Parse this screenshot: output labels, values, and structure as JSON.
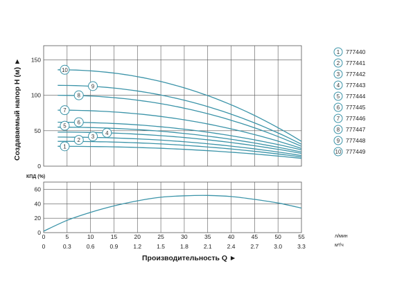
{
  "chart_data": [
    {
      "type": "line",
      "ylabel": "Создаваемый напор H (м)",
      "ylim": [
        0,
        170
      ],
      "xlim": [
        0,
        55
      ],
      "x_ticks": [],
      "y_ticks": [
        0,
        50,
        100,
        150
      ],
      "grid": true,
      "legend_position": "right",
      "color": "#3a93a8",
      "series": [
        {
          "id": "1",
          "name": "777440",
          "x": [
            3,
            55
          ],
          "y": [
            28,
            11
          ]
        },
        {
          "id": "2",
          "name": "777441",
          "x": [
            3,
            55
          ],
          "y": [
            35,
            13
          ]
        },
        {
          "id": "3",
          "name": "777442",
          "x": [
            3,
            55
          ],
          "y": [
            41,
            15
          ]
        },
        {
          "id": "4",
          "name": "777443",
          "x": [
            3,
            55
          ],
          "y": [
            48,
            18
          ]
        },
        {
          "id": "5",
          "name": "777444",
          "x": [
            3,
            55
          ],
          "y": [
            55,
            20
          ]
        },
        {
          "id": "6",
          "name": "777445",
          "x": [
            3,
            55
          ],
          "y": [
            62,
            23
          ]
        },
        {
          "id": "7",
          "name": "777446",
          "x": [
            3,
            55
          ],
          "y": [
            79,
            25
          ]
        },
        {
          "id": "8",
          "name": "777447",
          "x": [
            3,
            55
          ],
          "y": [
            100,
            28
          ]
        },
        {
          "id": "9",
          "name": "777448",
          "x": [
            3,
            55
          ],
          "y": [
            114,
            31
          ]
        },
        {
          "id": "10",
          "name": "777449",
          "x": [
            3,
            55
          ],
          "y": [
            136,
            35
          ]
        }
      ],
      "markers": [
        {
          "id": "10",
          "x": 4.5,
          "y": 136
        },
        {
          "id": "9",
          "x": 10.5,
          "y": 113
        },
        {
          "id": "8",
          "x": 7.5,
          "y": 100
        },
        {
          "id": "7",
          "x": 4.5,
          "y": 79
        },
        {
          "id": "6",
          "x": 7.5,
          "y": 62
        },
        {
          "id": "5",
          "x": 4.5,
          "y": 57
        },
        {
          "id": "4",
          "x": 13.5,
          "y": 47
        },
        {
          "id": "3",
          "x": 10.5,
          "y": 42
        },
        {
          "id": "2",
          "x": 7.5,
          "y": 37
        },
        {
          "id": "1",
          "x": 4.5,
          "y": 28
        }
      ]
    },
    {
      "type": "line",
      "ylabel": "КПД (%)",
      "ylim": [
        0,
        70
      ],
      "xlim": [
        0,
        55
      ],
      "y_ticks": [
        0,
        20,
        40,
        60
      ],
      "grid": true,
      "series": [
        {
          "name": "",
          "x": [
            0,
            5,
            10,
            15,
            20,
            25,
            30,
            35,
            40,
            45,
            50,
            55
          ],
          "y": [
            2,
            17,
            28,
            37,
            44,
            49,
            51,
            51.5,
            50,
            46,
            41,
            34
          ]
        }
      ]
    }
  ],
  "x_axis": {
    "q_ticks": [
      "0",
      "5",
      "10",
      "15",
      "20",
      "25",
      "30",
      "35",
      "40",
      "45",
      "50",
      "55"
    ],
    "q_unit": "л/мин",
    "m3_ticks": [
      "0",
      "0.3",
      "0.6",
      "0.9",
      "1.2",
      "1.5",
      "1.8",
      "2.1",
      "2.4",
      "2.7",
      "3.0",
      "3.3"
    ],
    "m3_unit": "м³/ч",
    "title": "Производительность Q ►"
  },
  "head_axis_title": "Создаваемый напор H (м) ►",
  "eff_axis_title": "КПД (%)",
  "legend": [
    {
      "num": "1",
      "label": "777440"
    },
    {
      "num": "2",
      "label": "777441"
    },
    {
      "num": "3",
      "label": "777442"
    },
    {
      "num": "4",
      "label": "777443"
    },
    {
      "num": "5",
      "label": "777444"
    },
    {
      "num": "6",
      "label": "777445"
    },
    {
      "num": "7",
      "label": "777446"
    },
    {
      "num": "8",
      "label": "777447"
    },
    {
      "num": "9",
      "label": "777448"
    },
    {
      "num": "10",
      "label": "777449"
    }
  ]
}
